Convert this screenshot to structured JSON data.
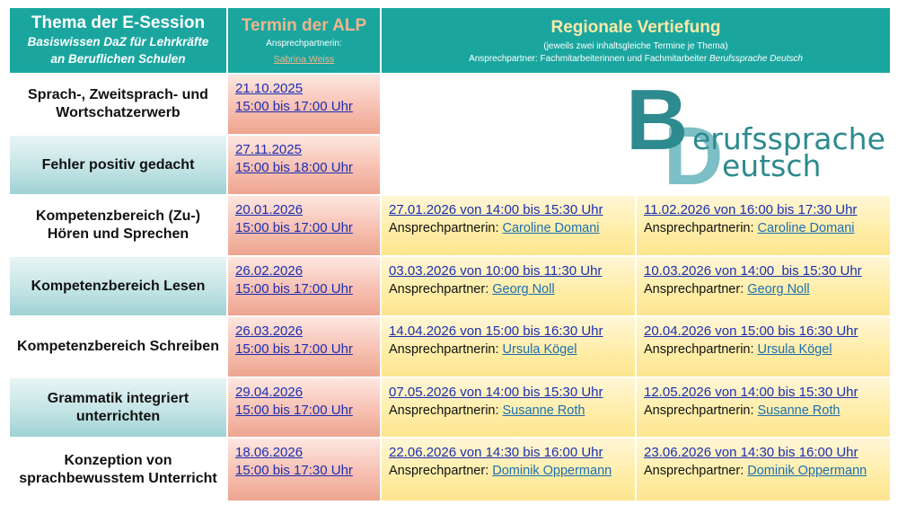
{
  "header": {
    "col1_title": "Thema der E-Session",
    "col1_sub1": "Basiswissen DaZ für Lehrkräfte",
    "col1_sub2": "an Beruflichen Schulen",
    "col2_title": "Termin der ALP",
    "col2_label": "Ansprechpartnerin:",
    "col2_contact": "Sabrina Weiss",
    "col3_title": "Regionale Vertiefung",
    "col3_sub1": "(jeweils zwei inhaltsgleiche Termine je Thema)",
    "col3_sub2_plain": "Ansprechpartner: Fachmitarbeiterinnen und Fachmitarbeiter",
    "col3_sub2_italic": "Berufssprache Deutsch"
  },
  "logo": {
    "letter_b": "B",
    "letter_d": "D",
    "word1": "erufssprache",
    "word2": "eutsch",
    "color_dark": "#2d8a8e",
    "color_light": "#6fb9c0"
  },
  "rows": [
    {
      "topic": [
        "Sprach-, Zweitsprach- und",
        "Wortschatzerwerb"
      ],
      "alp_date": "21.10.2025",
      "alp_time": "15:00 bis 17:00 Uhr"
    },
    {
      "topic": [
        "Fehler positiv gedacht"
      ],
      "alp_date": "27.11.2025",
      "alp_time": "15:00 bis 18:00 Uhr"
    },
    {
      "topic": [
        "Kompetenzbereich (Zu-)",
        "Hören und Sprechen"
      ],
      "alp_date": "20.01.2026",
      "alp_time": "15:00 bis 17:00 Uhr",
      "reg1": "27.01.2026 von 14:00 bis 15:30 Uhr",
      "reg1_label": "Ansprechpartnerin:",
      "reg1_contact": "Caroline Domani",
      "reg2": "11.02.2026 von 16:00 bis 17:30 Uhr",
      "reg2_label": "Ansprechpartnerin:",
      "reg2_contact": "Caroline Domani"
    },
    {
      "topic": [
        "Kompetenzbereich Lesen"
      ],
      "alp_date": "26.02.2026",
      "alp_time": "15:00 bis 17:00 Uhr",
      "reg1": "03.03.2026 von 10:00 bis 11:30 Uhr",
      "reg1_label": "Ansprechpartner:",
      "reg1_contact": "Georg Noll",
      "reg2": "10.03.2026 von 14:00  bis 15:30 Uhr",
      "reg2_label": "Ansprechpartner:",
      "reg2_contact": "Georg Noll"
    },
    {
      "topic": [
        "Kompetenzbereich Schreiben"
      ],
      "alp_date": "26.03.2026",
      "alp_time": "15:00 bis 17:00 Uhr",
      "reg1": "14.04.2026 von 15:00 bis 16:30 Uhr",
      "reg1_label": "Ansprechpartnerin:",
      "reg1_contact": "Ursula Kögel",
      "reg2": "20.04.2026 von 15:00 bis 16:30 Uhr",
      "reg2_label": "Ansprechpartnerin:",
      "reg2_contact": "Ursula Kögel"
    },
    {
      "topic": [
        "Grammatik integriert",
        "unterrichten"
      ],
      "alp_date": "29.04.2026",
      "alp_time": "15:00 bis 17:00 Uhr",
      "reg1": "07.05.2026 von 14:00 bis 15:30 Uhr",
      "reg1_label": "Ansprechpartnerin:",
      "reg1_contact": "Susanne Roth",
      "reg2": "12.05.2026 von 14:00 bis 15:30 Uhr",
      "reg2_label": "Ansprechpartnerin:",
      "reg2_contact": "Susanne Roth"
    },
    {
      "topic": [
        "Konzeption von",
        "sprachbewusstem Unterricht"
      ],
      "alp_date": "18.06.2026",
      "alp_time": "15:00 bis 17:30 Uhr",
      "reg1": "22.06.2026 von 14:30 bis 16:00 Uhr",
      "reg1_label": "Ansprechpartner:",
      "reg1_contact": "Dominik Oppermann",
      "reg2": "23.06.2026 von 14:30 bis 16:00 Uhr",
      "reg2_label": "Ansprechpartner:",
      "reg2_contact": "Dominik Oppermann"
    }
  ]
}
